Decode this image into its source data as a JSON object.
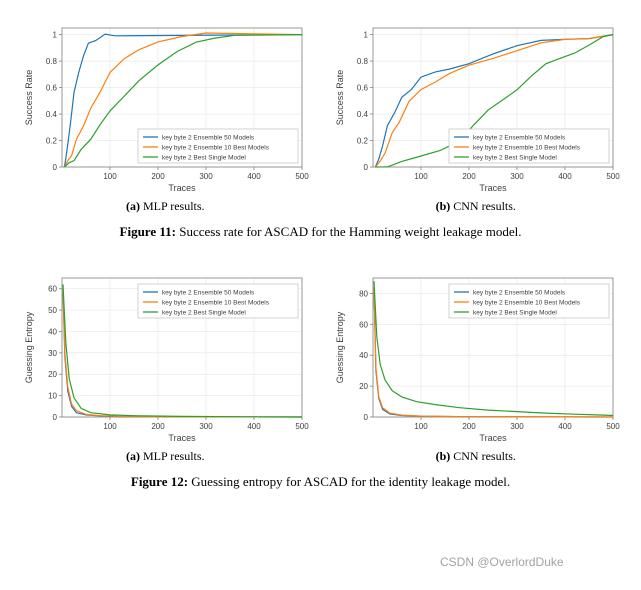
{
  "colors": {
    "blue": "#1f77b4",
    "orange": "#ff7f0e",
    "green": "#2ca02c",
    "axis": "#808080",
    "grid": "#e0e0e0",
    "legend_border": "#c0c0c0",
    "text": "#404040",
    "black": "#000000"
  },
  "legend_items": [
    "key byte 2 Ensemble 50 Models",
    "key byte 2 Ensemble 10 Best Models",
    "key byte 2 Best Single Model"
  ],
  "fig11": {
    "caption_label": "Figure 11:",
    "caption_text": " Success rate for ASCAD for the Hamming weight leakage model.",
    "subcaptions": {
      "a": "(a)",
      "a_text": " MLP results.",
      "b": "(b)",
      "b_text": " CNN results."
    },
    "ylabel": "Success Rate",
    "xlabel": "Traces",
    "xlim": [
      0,
      500
    ],
    "ylim": [
      0,
      1.05
    ],
    "xticks": [
      100,
      200,
      300,
      400,
      500
    ],
    "yticks": [
      0,
      0.2,
      0.4,
      0.6,
      0.8,
      1
    ],
    "a": {
      "blue": [
        [
          5,
          0.0
        ],
        [
          8,
          0.05
        ],
        [
          12,
          0.18
        ],
        [
          18,
          0.35
        ],
        [
          25,
          0.55
        ],
        [
          35,
          0.72
        ],
        [
          45,
          0.85
        ],
        [
          55,
          0.92
        ],
        [
          70,
          0.97
        ],
        [
          90,
          0.99
        ],
        [
          110,
          1.0
        ],
        [
          500,
          1.0
        ]
      ],
      "orange": [
        [
          5,
          0.0
        ],
        [
          12,
          0.04
        ],
        [
          20,
          0.1
        ],
        [
          30,
          0.2
        ],
        [
          45,
          0.32
        ],
        [
          60,
          0.44
        ],
        [
          80,
          0.58
        ],
        [
          100,
          0.7
        ],
        [
          130,
          0.82
        ],
        [
          160,
          0.9
        ],
        [
          200,
          0.96
        ],
        [
          250,
          0.99
        ],
        [
          300,
          1.0
        ],
        [
          500,
          1.0
        ]
      ],
      "green": [
        [
          5,
          0.0
        ],
        [
          15,
          0.03
        ],
        [
          25,
          0.06
        ],
        [
          40,
          0.12
        ],
        [
          60,
          0.22
        ],
        [
          80,
          0.32
        ],
        [
          100,
          0.42
        ],
        [
          130,
          0.55
        ],
        [
          160,
          0.66
        ],
        [
          200,
          0.78
        ],
        [
          240,
          0.88
        ],
        [
          280,
          0.95
        ],
        [
          320,
          0.98
        ],
        [
          360,
          1.0
        ],
        [
          500,
          1.0
        ]
      ]
    },
    "b": {
      "blue": [
        [
          5,
          0.0
        ],
        [
          12,
          0.05
        ],
        [
          20,
          0.18
        ],
        [
          30,
          0.3
        ],
        [
          45,
          0.42
        ],
        [
          60,
          0.52
        ],
        [
          80,
          0.6
        ],
        [
          100,
          0.66
        ],
        [
          130,
          0.72
        ],
        [
          160,
          0.76
        ],
        [
          200,
          0.8
        ],
        [
          250,
          0.86
        ],
        [
          300,
          0.9
        ],
        [
          350,
          0.94
        ],
        [
          400,
          0.97
        ],
        [
          450,
          0.99
        ],
        [
          500,
          1.0
        ]
      ],
      "orange": [
        [
          5,
          0.0
        ],
        [
          15,
          0.04
        ],
        [
          25,
          0.12
        ],
        [
          40,
          0.24
        ],
        [
          55,
          0.36
        ],
        [
          75,
          0.48
        ],
        [
          100,
          0.58
        ],
        [
          130,
          0.66
        ],
        [
          160,
          0.72
        ],
        [
          200,
          0.78
        ],
        [
          250,
          0.84
        ],
        [
          300,
          0.88
        ],
        [
          350,
          0.92
        ],
        [
          400,
          0.95
        ],
        [
          450,
          0.98
        ],
        [
          500,
          1.0
        ]
      ],
      "green": [
        [
          5,
          0.0
        ],
        [
          30,
          0.02
        ],
        [
          60,
          0.05
        ],
        [
          100,
          0.09
        ],
        [
          140,
          0.13
        ],
        [
          180,
          0.2
        ],
        [
          210,
          0.3
        ],
        [
          240,
          0.42
        ],
        [
          270,
          0.52
        ],
        [
          300,
          0.6
        ],
        [
          330,
          0.68
        ],
        [
          360,
          0.76
        ],
        [
          390,
          0.82
        ],
        [
          420,
          0.88
        ],
        [
          450,
          0.93
        ],
        [
          480,
          0.97
        ],
        [
          500,
          1.0
        ]
      ]
    }
  },
  "fig12": {
    "caption_label": "Figure 12:",
    "caption_text": " Guessing entropy for ASCAD for the identity leakage model.",
    "subcaptions": {
      "a": "(a)",
      "a_text": " MLP results.",
      "b": "(b)",
      "b_text": " CNN results."
    },
    "ylabel": "Guessing Entropy",
    "xlabel": "Traces",
    "xlim": [
      0,
      500
    ],
    "xticks": [
      100,
      200,
      300,
      400,
      500
    ],
    "a": {
      "ylim": [
        0,
        65
      ],
      "yticks": [
        0,
        10,
        20,
        30,
        40,
        50,
        60
      ],
      "blue": [
        [
          2,
          58
        ],
        [
          6,
          28
        ],
        [
          12,
          12
        ],
        [
          20,
          5
        ],
        [
          30,
          2
        ],
        [
          50,
          1
        ],
        [
          80,
          0.5
        ],
        [
          120,
          0.2
        ],
        [
          200,
          0.1
        ],
        [
          500,
          0
        ]
      ],
      "orange": [
        [
          2,
          60
        ],
        [
          6,
          30
        ],
        [
          12,
          14
        ],
        [
          20,
          6
        ],
        [
          30,
          3
        ],
        [
          50,
          1.2
        ],
        [
          80,
          0.6
        ],
        [
          120,
          0.3
        ],
        [
          200,
          0.1
        ],
        [
          500,
          0
        ]
      ],
      "green": [
        [
          2,
          62
        ],
        [
          8,
          35
        ],
        [
          15,
          18
        ],
        [
          25,
          9
        ],
        [
          40,
          4
        ],
        [
          60,
          2
        ],
        [
          100,
          1
        ],
        [
          150,
          0.6
        ],
        [
          250,
          0.3
        ],
        [
          400,
          0.1
        ],
        [
          500,
          0
        ]
      ]
    },
    "b": {
      "ylim": [
        0,
        90
      ],
      "yticks": [
        0,
        20,
        40,
        60,
        80
      ],
      "blue": [
        [
          2,
          82
        ],
        [
          6,
          30
        ],
        [
          12,
          12
        ],
        [
          20,
          5
        ],
        [
          35,
          2
        ],
        [
          60,
          1
        ],
        [
          100,
          0.5
        ],
        [
          200,
          0.2
        ],
        [
          500,
          0
        ]
      ],
      "orange": [
        [
          2,
          84
        ],
        [
          6,
          32
        ],
        [
          12,
          13
        ],
        [
          20,
          6
        ],
        [
          35,
          2.5
        ],
        [
          60,
          1.2
        ],
        [
          100,
          0.6
        ],
        [
          200,
          0.2
        ],
        [
          500,
          0
        ]
      ],
      "green": [
        [
          2,
          88
        ],
        [
          8,
          52
        ],
        [
          15,
          34
        ],
        [
          25,
          24
        ],
        [
          40,
          17
        ],
        [
          60,
          13
        ],
        [
          90,
          10
        ],
        [
          130,
          8
        ],
        [
          180,
          6
        ],
        [
          240,
          4.5
        ],
        [
          300,
          3.5
        ],
        [
          360,
          2.5
        ],
        [
          420,
          1.8
        ],
        [
          480,
          1.2
        ],
        [
          500,
          1
        ]
      ]
    }
  },
  "watermark": "CSDN @OverlordDuke"
}
